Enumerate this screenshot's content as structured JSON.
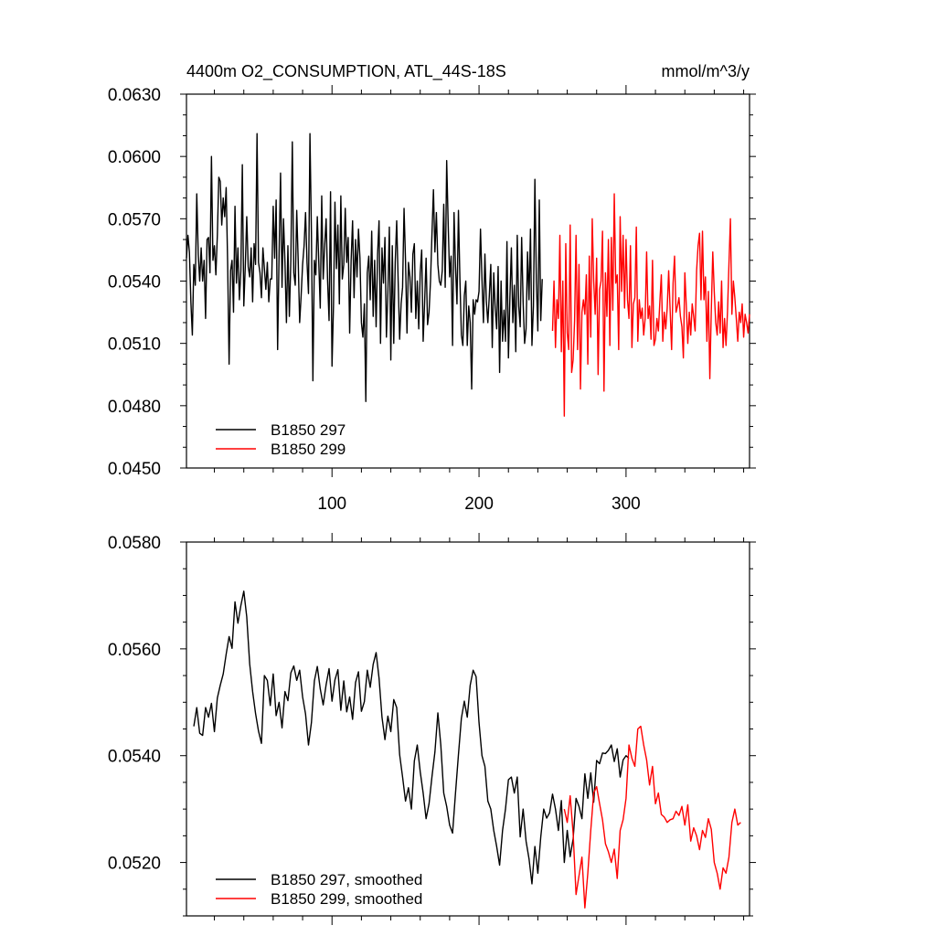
{
  "chart_data": [
    {
      "type": "line",
      "title": "4400m O2_CONSUMPTION, ATL_44S-18S",
      "units": "mmol/m^3/y",
      "xlim": [
        1,
        384
      ],
      "ylim": [
        0.045,
        0.063
      ],
      "x_ticks": [
        100,
        200,
        300
      ],
      "x_tick_labels": [
        "100",
        "200",
        "300"
      ],
      "y_ticks": [
        0.045,
        0.048,
        0.051,
        0.054,
        0.057,
        0.06,
        0.063
      ],
      "y_tick_labels": [
        "0.0450",
        "0.0480",
        "0.0510",
        "0.0540",
        "0.0570",
        "0.0600",
        "0.0630"
      ],
      "legend_position": "bottom-left",
      "series": [
        {
          "name": "B1850 297",
          "color": "#000000",
          "x_start": 1,
          "values": [
            0.0551,
            0.0562,
            0.0554,
            0.053,
            0.0514,
            0.0548,
            0.0538,
            0.0582,
            0.0553,
            0.054,
            0.0556,
            0.054,
            0.055,
            0.0522,
            0.056,
            0.0561,
            0.0544,
            0.06,
            0.055,
            0.0557,
            0.0543,
            0.0562,
            0.059,
            0.0588,
            0.0567,
            0.058,
            0.0571,
            0.0585,
            0.0549,
            0.05,
            0.0545,
            0.055,
            0.0525,
            0.0576,
            0.0539,
            0.0556,
            0.0531,
            0.0545,
            0.0596,
            0.0528,
            0.0547,
            0.0571,
            0.0547,
            0.0542,
            0.0556,
            0.053,
            0.0558,
            0.0548,
            0.0611,
            0.0549,
            0.0544,
            0.0532,
            0.0556,
            0.0546,
            0.0536,
            0.0549,
            0.053,
            0.0541,
            0.0541,
            0.0576,
            0.0551,
            0.0579,
            0.0507,
            0.0553,
            0.0592,
            0.0537,
            0.057,
            0.0549,
            0.052,
            0.0557,
            0.0523,
            0.055,
            0.0607,
            0.0544,
            0.0538,
            0.0574,
            0.055,
            0.052,
            0.0533,
            0.0548,
            0.0557,
            0.0573,
            0.0549,
            0.0534,
            0.0611,
            0.0563,
            0.0492,
            0.055,
            0.0543,
            0.0571,
            0.0549,
            0.0527,
            0.0581,
            0.0541,
            0.0557,
            0.057,
            0.054,
            0.0521,
            0.0583,
            0.0499,
            0.0528,
            0.0578,
            0.0546,
            0.0567,
            0.0529,
            0.0581,
            0.0541,
            0.0548,
            0.0575,
            0.0549,
            0.0561,
            0.0515,
            0.055,
            0.0569,
            0.0532,
            0.056,
            0.0542,
            0.0565,
            0.0551,
            0.052,
            0.0513,
            0.0529,
            0.0482,
            0.0544,
            0.0552,
            0.0531,
            0.0564,
            0.0523,
            0.055,
            0.0518,
            0.0553,
            0.0569,
            0.051,
            0.0556,
            0.0539,
            0.0561,
            0.0513,
            0.0534,
            0.0566,
            0.0502,
            0.0557,
            0.051,
            0.0549,
            0.0569,
            0.054,
            0.0512,
            0.0529,
            0.0537,
            0.0575,
            0.055,
            0.0515,
            0.0549,
            0.0542,
            0.0525,
            0.0553,
            0.0558,
            0.0522,
            0.054,
            0.0517,
            0.0544,
            0.0555,
            0.0511,
            0.053,
            0.0551,
            0.0519,
            0.0525,
            0.054,
            0.0563,
            0.0584,
            0.0554,
            0.0573,
            0.0548,
            0.054,
            0.0538,
            0.0545,
            0.0577,
            0.0537,
            0.0598,
            0.0568,
            0.0542,
            0.0552,
            0.0509,
            0.0573,
            0.0547,
            0.0529,
            0.0574,
            0.0541,
            0.0514,
            0.0509,
            0.0533,
            0.054,
            0.0509,
            0.0528,
            0.052,
            0.0488,
            0.0531,
            0.0524,
            0.0531,
            0.053,
            0.0535,
            0.0565,
            0.0541,
            0.052,
            0.0553,
            0.053,
            0.052,
            0.0533,
            0.0548,
            0.0508,
            0.0544,
            0.0527,
            0.0517,
            0.0547,
            0.0496,
            0.054,
            0.0511,
            0.0526,
            0.0511,
            0.0559,
            0.0503,
            0.0532,
            0.0556,
            0.052,
            0.0538,
            0.0506,
            0.0562,
            0.0528,
            0.0518,
            0.0561,
            0.053,
            0.051,
            0.0517,
            0.0554,
            0.0531,
            0.0565,
            0.0509,
            0.0528,
            0.0589,
            0.054,
            0.0516,
            0.0579,
            0.0521,
            0.0541
          ]
        },
        {
          "name": "B1850 299",
          "color": "#ff0000",
          "x_start": 250,
          "values": [
            0.0516,
            0.054,
            0.0508,
            0.0531,
            0.0522,
            0.0562,
            0.0506,
            0.054,
            0.0475,
            0.0558,
            0.0515,
            0.0507,
            0.0567,
            0.0496,
            0.0502,
            0.0521,
            0.0562,
            0.0507,
            0.0548,
            0.0488,
            0.0525,
            0.0531,
            0.0524,
            0.0543,
            0.05,
            0.0552,
            0.0513,
            0.057,
            0.054,
            0.0524,
            0.0551,
            0.0495,
            0.0536,
            0.054,
            0.0564,
            0.0487,
            0.0544,
            0.0523,
            0.056,
            0.0509,
            0.0561,
            0.0526,
            0.0582,
            0.0539,
            0.0543,
            0.0507,
            0.0571,
            0.0535,
            0.0562,
            0.0527,
            0.056,
            0.0531,
            0.0522,
            0.0557,
            0.0508,
            0.0529,
            0.0532,
            0.0566,
            0.0511,
            0.0531,
            0.0522,
            0.0527,
            0.0514,
            0.0522,
            0.0554,
            0.0522,
            0.0528,
            0.0512,
            0.055,
            0.0509,
            0.0512,
            0.0522,
            0.0516,
            0.053,
            0.0543,
            0.0511,
            0.0525,
            0.0517,
            0.0527,
            0.0545,
            0.0526,
            0.0507,
            0.0539,
            0.0552,
            0.0525,
            0.0528,
            0.0532,
            0.0523,
            0.0518,
            0.0503,
            0.0544,
            0.0528,
            0.051,
            0.0525,
            0.0514,
            0.0529,
            0.0523,
            0.0516,
            0.0545,
            0.0557,
            0.0563,
            0.0531,
            0.0564,
            0.0531,
            0.0542,
            0.0511,
            0.0535,
            0.0493,
            0.0526,
            0.0554,
            0.0535,
            0.052,
            0.0514,
            0.053,
            0.0515,
            0.054,
            0.0508,
            0.0522,
            0.0509,
            0.0525,
            0.0548,
            0.057,
            0.0524,
            0.054,
            0.0532,
            0.0522,
            0.0511,
            0.0525,
            0.052,
            0.0529,
            0.0513,
            0.0524,
            0.052,
            0.0515,
            0.0524
          ]
        }
      ]
    },
    {
      "type": "line",
      "xlim": [
        1,
        384
      ],
      "ylim": [
        0.051,
        0.058
      ],
      "x_ticks": [
        100,
        200,
        300
      ],
      "y_ticks": [
        0.052,
        0.054,
        0.056,
        0.058
      ],
      "y_tick_labels": [
        "0.0520",
        "0.0540",
        "0.0560",
        "0.0580"
      ],
      "legend_position": "bottom-left",
      "series": [
        {
          "name": "B1850 297, smoothed",
          "color": "#000000",
          "x": [
            6,
            8,
            10,
            12,
            14,
            16,
            18,
            20,
            22,
            24,
            26,
            28,
            30,
            32,
            34,
            36,
            38,
            40,
            42,
            44,
            46,
            48,
            50,
            52,
            54,
            56,
            58,
            60,
            62,
            64,
            66,
            68,
            70,
            72,
            74,
            76,
            78,
            80,
            82,
            84,
            86,
            88,
            90,
            92,
            94,
            96,
            98,
            100,
            102,
            104,
            106,
            108,
            110,
            112,
            114,
            116,
            118,
            120,
            122,
            124,
            126,
            128,
            130,
            132,
            134,
            136,
            138,
            140,
            142,
            144,
            146,
            148,
            150,
            152,
            154,
            156,
            158,
            160,
            162,
            164,
            166,
            168,
            170,
            172,
            174,
            176,
            178,
            180,
            182,
            184,
            186,
            188,
            190,
            192,
            194,
            196,
            198,
            200,
            202,
            204,
            206,
            208,
            210,
            212,
            214,
            216,
            218,
            220,
            222,
            224,
            226,
            228,
            230,
            232,
            234,
            236,
            238,
            240,
            242,
            244,
            246,
            248,
            250,
            252,
            254,
            256,
            258,
            260,
            262,
            264,
            266,
            268,
            270,
            272,
            274,
            276,
            278,
            280,
            282,
            284,
            286,
            288,
            290,
            292,
            294,
            296,
            298,
            300,
            302
          ],
          "values": [
            0.05455,
            0.0549,
            0.05442,
            0.05438,
            0.0549,
            0.05472,
            0.05498,
            0.05445,
            0.05508,
            0.05532,
            0.05553,
            0.0559,
            0.05623,
            0.05601,
            0.05688,
            0.05648,
            0.05681,
            0.05708,
            0.0566,
            0.05572,
            0.0552,
            0.05479,
            0.05446,
            0.05423,
            0.0555,
            0.05541,
            0.05494,
            0.05553,
            0.05475,
            0.055,
            0.05452,
            0.0552,
            0.05503,
            0.05555,
            0.05568,
            0.05541,
            0.0556,
            0.0551,
            0.05478,
            0.0542,
            0.05462,
            0.0554,
            0.05567,
            0.05525,
            0.05495,
            0.05533,
            0.05563,
            0.05502,
            0.05542,
            0.05561,
            0.05485,
            0.0554,
            0.05482,
            0.0551,
            0.05468,
            0.05537,
            0.05557,
            0.05483,
            0.05501,
            0.0556,
            0.05528,
            0.05571,
            0.05593,
            0.05545,
            0.05472,
            0.0543,
            0.05474,
            0.05445,
            0.05505,
            0.0549,
            0.05402,
            0.0536,
            0.05315,
            0.0534,
            0.053,
            0.0539,
            0.0542,
            0.0537,
            0.0533,
            0.05282,
            0.0531,
            0.05361,
            0.05407,
            0.0548,
            0.0542,
            0.0533,
            0.05305,
            0.0527,
            0.05255,
            0.0533,
            0.05402,
            0.0547,
            0.05502,
            0.05472,
            0.05532,
            0.0556,
            0.05548,
            0.05462,
            0.054,
            0.0538,
            0.05315,
            0.053,
            0.0526,
            0.0523,
            0.05195,
            0.0526,
            0.053,
            0.05355,
            0.0536,
            0.0533,
            0.0536,
            0.05248,
            0.053,
            0.0524,
            0.05207,
            0.0516,
            0.0523,
            0.0518,
            0.05248,
            0.053,
            0.05283,
            0.05293,
            0.05328,
            0.053,
            0.0526,
            0.05316,
            0.052,
            0.0526,
            0.05211,
            0.05244,
            0.0532,
            0.05305,
            0.05282,
            0.05366,
            0.0532,
            0.05368,
            0.05313,
            0.05391,
            0.05385,
            0.05405,
            0.05404,
            0.0541,
            0.0542,
            0.05389,
            0.05413,
            0.0536,
            0.05392,
            0.054,
            0.05395
          ]
        },
        {
          "name": "B1850 299, smoothed",
          "color": "#ff0000",
          "x": [
            258,
            260,
            262,
            264,
            266,
            268,
            270,
            272,
            274,
            276,
            278,
            280,
            282,
            284,
            286,
            288,
            290,
            292,
            294,
            296,
            298,
            300,
            302,
            304,
            306,
            308,
            310,
            312,
            314,
            316,
            318,
            320,
            322,
            324,
            326,
            328,
            330,
            332,
            334,
            336,
            338,
            340,
            342,
            344,
            346,
            348,
            350,
            352,
            354,
            356,
            358,
            360,
            362,
            364,
            366,
            368,
            370,
            372,
            374,
            376,
            378
          ],
          "values": [
            0.053,
            0.05275,
            0.05325,
            0.05255,
            0.0514,
            0.05175,
            0.0521,
            0.05115,
            0.0518,
            0.0526,
            0.0533,
            0.05342,
            0.0531,
            0.0528,
            0.05235,
            0.0522,
            0.052,
            0.05225,
            0.0517,
            0.0526,
            0.0528,
            0.0532,
            0.0542,
            0.05395,
            0.0538,
            0.0545,
            0.05455,
            0.0542,
            0.05392,
            0.05345,
            0.0538,
            0.0531,
            0.0533,
            0.0529,
            0.05285,
            0.05275,
            0.0528,
            0.05282,
            0.05296,
            0.05288,
            0.05305,
            0.0527,
            0.05308,
            0.0524,
            0.05265,
            0.0525,
            0.05224,
            0.0526,
            0.05247,
            0.05282,
            0.05262,
            0.052,
            0.0518,
            0.0515,
            0.0519,
            0.0518,
            0.0521,
            0.05275,
            0.053,
            0.0527,
            0.05275
          ]
        }
      ]
    }
  ]
}
